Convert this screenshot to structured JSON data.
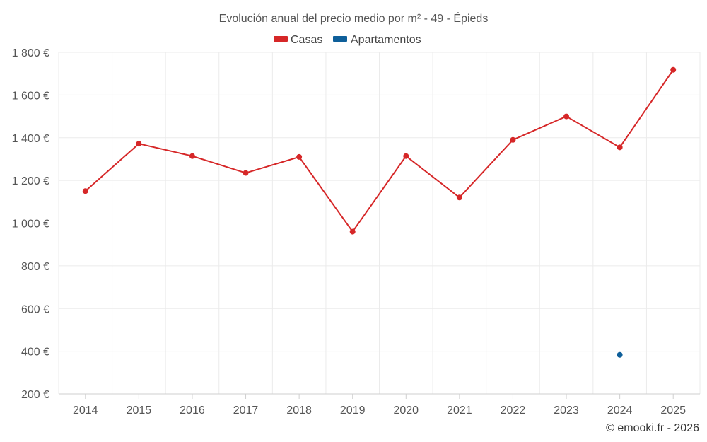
{
  "chart_data": {
    "type": "line",
    "title": "Evolución anual del precio medio por m² - 49 - Épieds",
    "categories": [
      "2014",
      "2015",
      "2016",
      "2017",
      "2018",
      "2019",
      "2020",
      "2021",
      "2022",
      "2023",
      "2024",
      "2025"
    ],
    "series": [
      {
        "name": "Casas",
        "color": "#d62728",
        "values": [
          1150,
          1372,
          1314,
          1235,
          1310,
          960,
          1314,
          1120,
          1390,
          1500,
          1355,
          1718
        ]
      },
      {
        "name": "Apartamentos",
        "color": "#0e5f9a",
        "values": [
          null,
          null,
          null,
          null,
          null,
          null,
          null,
          null,
          null,
          null,
          383,
          null
        ]
      }
    ],
    "ylim": [
      200,
      1800
    ],
    "yticks": [
      200,
      400,
      600,
      800,
      1000,
      1200,
      1400,
      1600,
      1800
    ],
    "ytick_labels": [
      "200 €",
      "400 €",
      "600 €",
      "800 €",
      "1 000 €",
      "1 200 €",
      "1 400 €",
      "1 600 €",
      "1 800 €"
    ],
    "grid": true,
    "legend_position": "top-center",
    "credit": "© emooki.fr - 2026"
  }
}
